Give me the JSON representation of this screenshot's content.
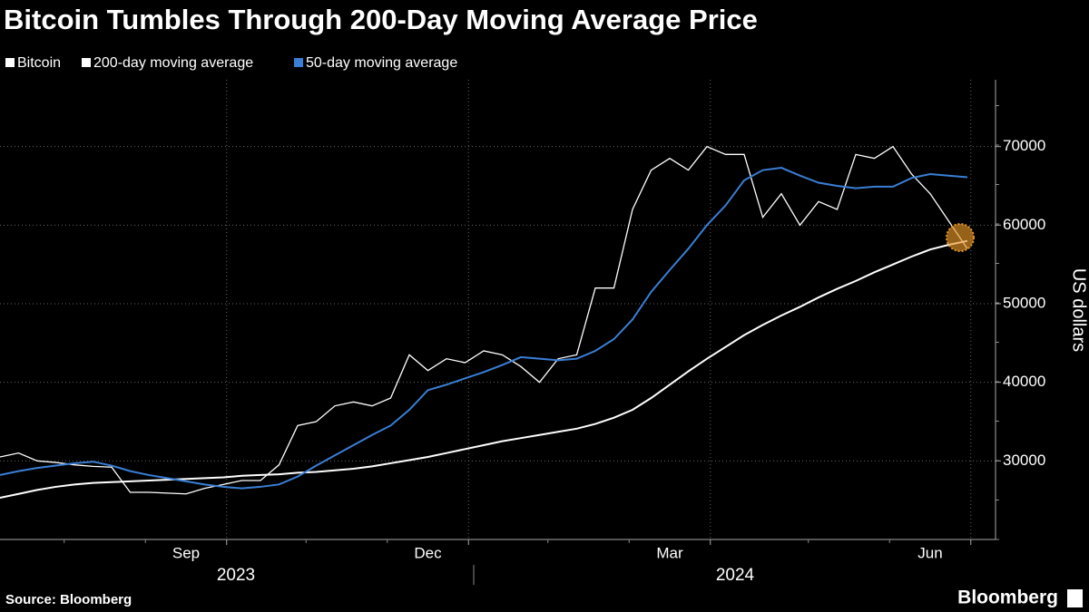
{
  "chart_data": {
    "type": "line",
    "title": "Bitcoin Tumbles Through 200-Day Moving Average Price",
    "y_label": "US dollars",
    "source": "Source: Bloomberg",
    "brand": "Bloomberg",
    "categories": [
      null,
      null,
      null,
      null,
      null,
      null,
      null,
      null,
      null,
      null,
      "Sep",
      null,
      null,
      null,
      null,
      null,
      null,
      null,
      null,
      null,
      null,
      null,
      null,
      "Dec",
      null,
      null,
      null,
      null,
      null,
      null,
      null,
      null,
      null,
      null,
      null,
      null,
      "Mar",
      null,
      null,
      null,
      null,
      null,
      null,
      null,
      null,
      null,
      null,
      null,
      null,
      null,
      "Jun",
      null,
      null
    ],
    "x_groups": [
      "2023",
      "2024"
    ],
    "series": [
      {
        "name": "Bitcoin",
        "color": "#ffffff",
        "values": [
          30500,
          31000,
          30000,
          29800,
          29500,
          29300,
          29200,
          26000,
          26000,
          25900,
          25800,
          26500,
          27000,
          27500,
          27500,
          29500,
          34500,
          35000,
          37000,
          37500,
          37000,
          38000,
          43500,
          41500,
          43000,
          42500,
          44000,
          43500,
          42000,
          40000,
          43000,
          43500,
          52000,
          52000,
          62000,
          67000,
          68500,
          67000,
          70000,
          69000,
          69000,
          61000,
          64000,
          60000,
          63000,
          62000,
          69000,
          68500,
          70000,
          66500,
          64000,
          60500,
          57000
        ]
      },
      {
        "name": "200-day moving average",
        "color": "#ffffff",
        "values": [
          25300,
          25800,
          26300,
          26700,
          27000,
          27200,
          27300,
          27400,
          27500,
          27600,
          27700,
          27800,
          27900,
          28100,
          28200,
          28300,
          28500,
          28600,
          28800,
          29000,
          29300,
          29700,
          30100,
          30500,
          31000,
          31500,
          32000,
          32500,
          32900,
          33300,
          33700,
          34100,
          34700,
          35500,
          36500,
          38000,
          39700,
          41400,
          43000,
          44500,
          46000,
          47300,
          48500,
          49600,
          50800,
          51900,
          52900,
          54000,
          55000,
          56000,
          56900,
          57500,
          58000
        ]
      },
      {
        "name": "50-day moving average",
        "color": "#3a7fd5",
        "values": [
          28200,
          28700,
          29100,
          29400,
          29700,
          29900,
          29400,
          28700,
          28200,
          27800,
          27400,
          27000,
          26700,
          26500,
          26700,
          27000,
          28000,
          29400,
          30700,
          32000,
          33300,
          34500,
          36500,
          39000,
          39700,
          40500,
          41300,
          42200,
          43200,
          43000,
          42800,
          43000,
          44000,
          45500,
          48000,
          51500,
          54300,
          57000,
          60000,
          62500,
          65700,
          67000,
          67300,
          66300,
          65400,
          65000,
          64700,
          64900,
          64900,
          66000,
          66500,
          66300,
          66100
        ]
      }
    ],
    "ylim": [
      20000,
      78500
    ],
    "yticks": [
      30000,
      40000,
      50000,
      60000,
      70000
    ],
    "grid": true
  }
}
